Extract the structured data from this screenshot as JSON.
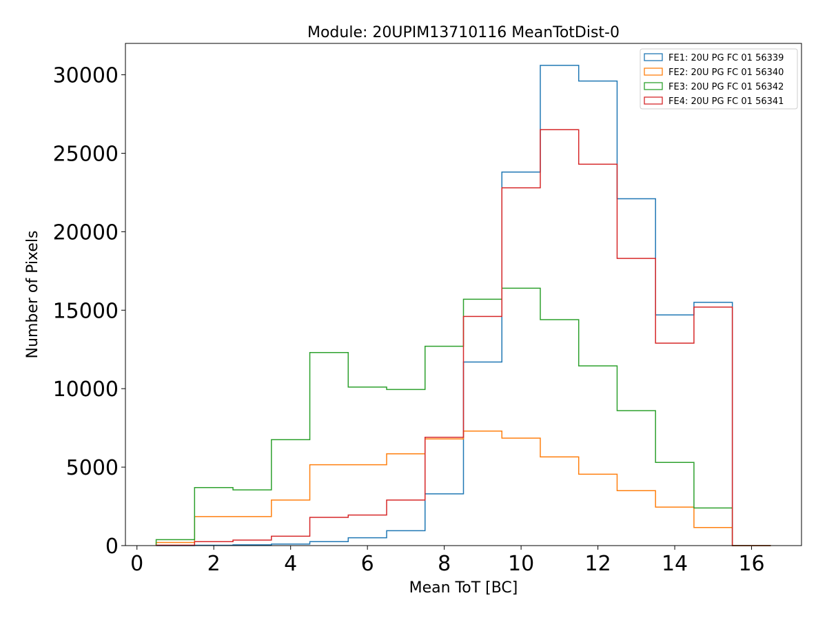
{
  "chart_data": {
    "type": "histogram-step",
    "title": "Module: 20UPIM13710116 MeanTotDist-0",
    "xlabel": "Mean ToT [BC]",
    "ylabel": "Number of Pixels",
    "xlim": [
      -0.3,
      17.3
    ],
    "ylim": [
      0,
      32000
    ],
    "xticks": [
      0,
      2,
      4,
      6,
      8,
      10,
      12,
      14,
      16
    ],
    "yticks": [
      0,
      5000,
      10000,
      15000,
      20000,
      25000,
      30000
    ],
    "bin_edges": [
      0.5,
      1.5,
      2.5,
      3.5,
      4.5,
      5.5,
      6.5,
      7.5,
      8.5,
      9.5,
      10.5,
      11.5,
      12.5,
      13.5,
      14.5,
      15.5,
      16.5
    ],
    "legend_position": "top-right",
    "series": [
      {
        "name": "FE1: 20U PG FC 01 56339",
        "color": "#1f77b4",
        "values": [
          0,
          20,
          50,
          100,
          250,
          500,
          950,
          3300,
          11700,
          23800,
          30600,
          29600,
          22100,
          14700,
          15500,
          0
        ]
      },
      {
        "name": "FE2: 20U PG FC 01 56340",
        "color": "#ff7f0e",
        "values": [
          200,
          1850,
          1850,
          2900,
          5150,
          5150,
          5850,
          6800,
          7300,
          6850,
          5650,
          4550,
          3500,
          2450,
          1150,
          0
        ]
      },
      {
        "name": "FE3: 20U PG FC 01 56342",
        "color": "#2ca02c",
        "values": [
          380,
          3700,
          3550,
          6750,
          12300,
          10100,
          9950,
          12700,
          15700,
          16400,
          14400,
          11450,
          8600,
          5300,
          2400,
          0
        ]
      },
      {
        "name": "FE4: 20U PG FC 01 56341",
        "color": "#d62728",
        "values": [
          30,
          250,
          350,
          600,
          1800,
          1950,
          2900,
          6900,
          14600,
          22800,
          26500,
          24300,
          18300,
          12900,
          15200,
          0
        ]
      }
    ]
  }
}
